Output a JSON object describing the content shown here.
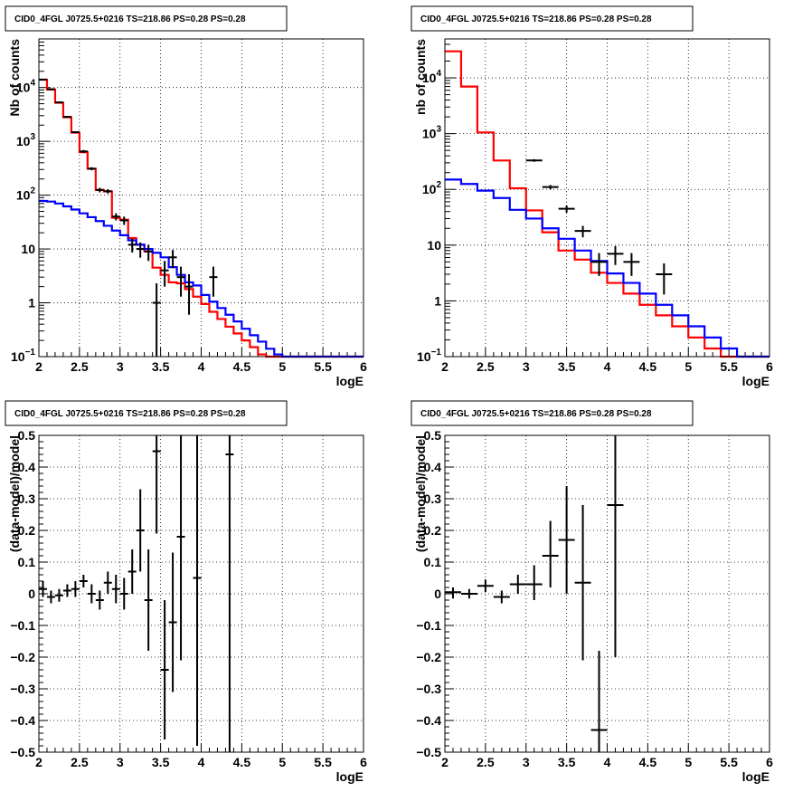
{
  "chart_data": [
    {
      "type": "line",
      "title": "CID0_4FGL J0725.5+0216 TS=218.86 PS=0.28 PS=0.28",
      "xlabel": "logE",
      "ylabel": "Nb of counts",
      "xlim": [
        2,
        6
      ],
      "ylim": [
        0.1,
        80000
      ],
      "yscale": "log",
      "grid": true,
      "xticks": [
        "2",
        "2.5",
        "3",
        "3.5",
        "4",
        "4.5",
        "5",
        "5.5",
        "6"
      ],
      "yticks": [
        {
          "value": 0.1,
          "label": "10",
          "sup": "−1"
        },
        {
          "value": 1,
          "label": "1",
          "sup": ""
        },
        {
          "value": 10,
          "label": "10",
          "sup": ""
        },
        {
          "value": 100,
          "label": "10",
          "sup": "2"
        },
        {
          "value": 1000,
          "label": "10",
          "sup": "3"
        },
        {
          "value": 10000,
          "label": "10",
          "sup": "4"
        }
      ],
      "bin_width": 0.1,
      "bin_edges_start": 2.0,
      "series": [
        {
          "kind": "step",
          "color": "#ff0000",
          "values": [
            14000,
            9200,
            5200,
            2800,
            1450,
            630,
            310,
            125,
            118,
            38,
            35,
            16,
            12,
            9,
            4.5,
            3.3,
            2.4,
            2.3,
            1.8,
            1.3,
            0.95,
            0.68,
            0.5,
            0.36,
            0.27,
            0.2,
            0.15,
            0.11,
            0.1,
            0.1,
            0.1,
            0.1,
            0.1,
            0.1,
            0.1,
            0.1,
            0.1,
            0.1,
            0.1,
            0.1
          ]
        },
        {
          "kind": "step",
          "color": "#0000ff",
          "values": [
            78,
            76,
            70,
            62,
            54,
            46,
            39,
            33,
            27,
            22,
            18,
            14.5,
            12,
            10,
            8.5,
            7,
            4.6,
            3.3,
            2.4,
            2.1,
            1.4,
            1.05,
            0.8,
            0.6,
            0.45,
            0.33,
            0.25,
            0.19,
            0.14,
            0.11,
            0.1,
            0.1,
            0.1,
            0.1,
            0.1,
            0.1,
            0.1,
            0.1,
            0.1,
            0.1
          ]
        },
        {
          "kind": "points",
          "color": "#000000",
          "points": [
            {
              "x": 2.05,
              "y": 14000,
              "ylo": 13700,
              "yhi": 14300
            },
            {
              "x": 2.15,
              "y": 9300,
              "ylo": 9100,
              "yhi": 9500
            },
            {
              "x": 2.25,
              "y": 5300,
              "ylo": 5150,
              "yhi": 5450
            },
            {
              "x": 2.35,
              "y": 2850,
              "ylo": 2750,
              "yhi": 2950
            },
            {
              "x": 2.45,
              "y": 1480,
              "ylo": 1420,
              "yhi": 1540
            },
            {
              "x": 2.55,
              "y": 650,
              "ylo": 610,
              "yhi": 690
            },
            {
              "x": 2.65,
              "y": 310,
              "ylo": 290,
              "yhi": 330
            },
            {
              "x": 2.75,
              "y": 125,
              "ylo": 113,
              "yhi": 137
            },
            {
              "x": 2.85,
              "y": 118,
              "ylo": 107,
              "yhi": 129
            },
            {
              "x": 2.95,
              "y": 40,
              "ylo": 34,
              "yhi": 46
            },
            {
              "x": 3.05,
              "y": 34,
              "ylo": 28,
              "yhi": 40
            },
            {
              "x": 3.15,
              "y": 12,
              "ylo": 8.6,
              "yhi": 15.5
            },
            {
              "x": 3.25,
              "y": 10,
              "ylo": 6.9,
              "yhi": 13.2
            },
            {
              "x": 3.35,
              "y": 9,
              "ylo": 6,
              "yhi": 12
            },
            {
              "x": 3.45,
              "y": 1,
              "ylo": 0.1,
              "yhi": 2.3
            },
            {
              "x": 3.55,
              "y": 4,
              "ylo": 2,
              "yhi": 6
            },
            {
              "x": 3.65,
              "y": 7,
              "ylo": 4.4,
              "yhi": 9.6
            },
            {
              "x": 3.75,
              "y": 3,
              "ylo": 1.3,
              "yhi": 4.7
            },
            {
              "x": 3.85,
              "y": 2,
              "ylo": 0.6,
              "yhi": 3.4
            },
            {
              "x": 4.15,
              "y": 3,
              "ylo": 1.3,
              "yhi": 4.7
            }
          ]
        }
      ]
    },
    {
      "type": "line",
      "title": "CID0_4FGL J0725.5+0216 TS=218.86 PS=0.28 PS=0.28",
      "xlabel": "logE",
      "ylabel": "nb of counts",
      "xlim": [
        2,
        6
      ],
      "ylim": [
        0.1,
        50000
      ],
      "yscale": "log",
      "grid": true,
      "xticks": [
        "2",
        "2.5",
        "3",
        "3.5",
        "4",
        "4.5",
        "5",
        "5.5",
        "6"
      ],
      "yticks": [
        {
          "value": 0.1,
          "label": "10",
          "sup": "−1"
        },
        {
          "value": 1,
          "label": "1",
          "sup": ""
        },
        {
          "value": 10,
          "label": "10",
          "sup": ""
        },
        {
          "value": 100,
          "label": "10",
          "sup": "2"
        },
        {
          "value": 1000,
          "label": "10",
          "sup": "3"
        },
        {
          "value": 10000,
          "label": "10",
          "sup": "4"
        }
      ],
      "bin_width": 0.2,
      "bin_edges_start": 2.0,
      "series": [
        {
          "kind": "step",
          "color": "#ff0000",
          "values": [
            30000,
            7000,
            1050,
            330,
            105,
            42,
            17,
            8,
            5.5,
            3.2,
            2.1,
            1.35,
            0.85,
            0.55,
            0.35,
            0.22,
            0.14,
            0.1,
            0.1,
            0.1
          ]
        },
        {
          "kind": "step",
          "color": "#0000ff",
          "values": [
            150,
            125,
            95,
            70,
            43,
            30,
            20,
            13,
            8,
            5.2,
            3.1,
            2.1,
            1.35,
            0.85,
            0.55,
            0.35,
            0.22,
            0.14,
            0.1,
            0.1
          ]
        },
        {
          "kind": "points",
          "color": "#000000",
          "points": [
            {
              "x": 3.1,
              "y": 330,
              "ylo": 312,
              "yhi": 348
            },
            {
              "x": 3.3,
              "y": 110,
              "ylo": 100,
              "yhi": 120
            },
            {
              "x": 3.5,
              "y": 45,
              "ylo": 38.3,
              "yhi": 51.7
            },
            {
              "x": 3.7,
              "y": 18,
              "ylo": 13.8,
              "yhi": 22.2
            },
            {
              "x": 3.9,
              "y": 5,
              "ylo": 2.8,
              "yhi": 7.2
            },
            {
              "x": 4.1,
              "y": 7,
              "ylo": 4.4,
              "yhi": 9.6
            },
            {
              "x": 4.3,
              "y": 5,
              "ylo": 2.8,
              "yhi": 7.2
            },
            {
              "x": 4.7,
              "y": 3,
              "ylo": 1.3,
              "yhi": 4.7
            }
          ]
        }
      ]
    },
    {
      "type": "scatter",
      "title": "CID0_4FGL J0725.5+0216 TS=218.86 PS=0.28 PS=0.28",
      "xlabel": "logE",
      "ylabel": "(data-model)/model",
      "xlim": [
        2,
        6
      ],
      "ylim": [
        -0.5,
        0.5
      ],
      "yscale": "linear",
      "grid": true,
      "xticks": [
        "2",
        "2.5",
        "3",
        "3.5",
        "4",
        "4.5",
        "5",
        "5.5",
        "6"
      ],
      "yticks": [
        {
          "value": -0.5,
          "label": "−0.5",
          "sup": ""
        },
        {
          "value": -0.4,
          "label": "−0.4",
          "sup": ""
        },
        {
          "value": -0.3,
          "label": "−0.3",
          "sup": ""
        },
        {
          "value": -0.2,
          "label": "−0.2",
          "sup": ""
        },
        {
          "value": -0.1,
          "label": "−0.1",
          "sup": ""
        },
        {
          "value": 0,
          "label": "0",
          "sup": ""
        },
        {
          "value": 0.1,
          "label": "0.1",
          "sup": ""
        },
        {
          "value": 0.2,
          "label": "0.2",
          "sup": ""
        },
        {
          "value": 0.3,
          "label": "0.3",
          "sup": ""
        },
        {
          "value": 0.4,
          "label": "0.4",
          "sup": ""
        },
        {
          "value": 0.5,
          "label": "0.5",
          "sup": ""
        }
      ],
      "bin_width": 0.1,
      "series": [
        {
          "kind": "points",
          "color": "#000000",
          "points": [
            {
              "x": 2.05,
              "y": 0.015,
              "ylo": -0.01,
              "yhi": 0.04
            },
            {
              "x": 2.15,
              "y": -0.01,
              "ylo": -0.03,
              "yhi": 0.01
            },
            {
              "x": 2.25,
              "y": -0.005,
              "ylo": -0.025,
              "yhi": 0.015
            },
            {
              "x": 2.35,
              "y": 0.01,
              "ylo": -0.01,
              "yhi": 0.03
            },
            {
              "x": 2.45,
              "y": 0.015,
              "ylo": -0.01,
              "yhi": 0.04
            },
            {
              "x": 2.55,
              "y": 0.04,
              "ylo": 0.02,
              "yhi": 0.06
            },
            {
              "x": 2.65,
              "y": 0.0,
              "ylo": -0.03,
              "yhi": 0.03
            },
            {
              "x": 2.75,
              "y": -0.02,
              "ylo": -0.05,
              "yhi": 0.01
            },
            {
              "x": 2.85,
              "y": 0.035,
              "ylo": 0.0,
              "yhi": 0.07
            },
            {
              "x": 2.95,
              "y": 0.015,
              "ylo": -0.03,
              "yhi": 0.06
            },
            {
              "x": 3.05,
              "y": 0.0,
              "ylo": -0.05,
              "yhi": 0.05
            },
            {
              "x": 3.15,
              "y": 0.07,
              "ylo": 0.0,
              "yhi": 0.14
            },
            {
              "x": 3.25,
              "y": 0.2,
              "ylo": 0.07,
              "yhi": 0.33
            },
            {
              "x": 3.35,
              "y": -0.02,
              "ylo": -0.18,
              "yhi": 0.14
            },
            {
              "x": 3.45,
              "y": 0.45,
              "ylo": 0.19,
              "yhi": 0.5
            },
            {
              "x": 3.55,
              "y": -0.24,
              "ylo": -0.46,
              "yhi": -0.02
            },
            {
              "x": 3.65,
              "y": -0.09,
              "ylo": -0.31,
              "yhi": 0.13
            },
            {
              "x": 3.75,
              "y": 0.18,
              "ylo": -0.21,
              "yhi": 0.5
            },
            {
              "x": 3.95,
              "y": 0.05,
              "ylo": -0.48,
              "yhi": 0.5
            },
            {
              "x": 4.35,
              "y": 0.44,
              "ylo": -0.5,
              "yhi": 0.5
            }
          ]
        }
      ]
    },
    {
      "type": "scatter",
      "title": "CID0_4FGL J0725.5+0216 TS=218.86 PS=0.28 PS=0.28",
      "xlabel": "logE",
      "ylabel": "(data-model)/model",
      "xlim": [
        2,
        6
      ],
      "ylim": [
        -0.5,
        0.5
      ],
      "yscale": "linear",
      "grid": true,
      "xticks": [
        "2",
        "2.5",
        "3",
        "3.5",
        "4",
        "4.5",
        "5",
        "5.5",
        "6"
      ],
      "yticks": [
        {
          "value": -0.5,
          "label": "−0.5",
          "sup": ""
        },
        {
          "value": -0.4,
          "label": "−0.4",
          "sup": ""
        },
        {
          "value": -0.3,
          "label": "−0.3",
          "sup": ""
        },
        {
          "value": -0.2,
          "label": "−0.2",
          "sup": ""
        },
        {
          "value": -0.1,
          "label": "−0.1",
          "sup": ""
        },
        {
          "value": 0,
          "label": "0",
          "sup": ""
        },
        {
          "value": 0.1,
          "label": "0.1",
          "sup": ""
        },
        {
          "value": 0.2,
          "label": "0.2",
          "sup": ""
        },
        {
          "value": 0.3,
          "label": "0.3",
          "sup": ""
        },
        {
          "value": 0.4,
          "label": "0.4",
          "sup": ""
        },
        {
          "value": 0.5,
          "label": "0.5",
          "sup": ""
        }
      ],
      "bin_width": 0.2,
      "series": [
        {
          "kind": "points",
          "color": "#000000",
          "points": [
            {
              "x": 2.1,
              "y": 0.005,
              "ylo": -0.015,
              "yhi": 0.02
            },
            {
              "x": 2.3,
              "y": 0.0,
              "ylo": -0.015,
              "yhi": 0.015
            },
            {
              "x": 2.5,
              "y": 0.025,
              "ylo": 0.005,
              "yhi": 0.045
            },
            {
              "x": 2.7,
              "y": -0.01,
              "ylo": -0.03,
              "yhi": 0.01
            },
            {
              "x": 2.9,
              "y": 0.03,
              "ylo": 0.0,
              "yhi": 0.06
            },
            {
              "x": 3.1,
              "y": 0.03,
              "ylo": -0.02,
              "yhi": 0.09
            },
            {
              "x": 3.3,
              "y": 0.12,
              "ylo": 0.02,
              "yhi": 0.23
            },
            {
              "x": 3.5,
              "y": 0.17,
              "ylo": 0.0,
              "yhi": 0.34
            },
            {
              "x": 3.7,
              "y": 0.035,
              "ylo": -0.21,
              "yhi": 0.28
            },
            {
              "x": 3.9,
              "y": -0.43,
              "ylo": -0.5,
              "yhi": -0.18
            },
            {
              "x": 4.1,
              "y": 0.28,
              "ylo": -0.2,
              "yhi": 0.5
            }
          ]
        }
      ]
    }
  ]
}
